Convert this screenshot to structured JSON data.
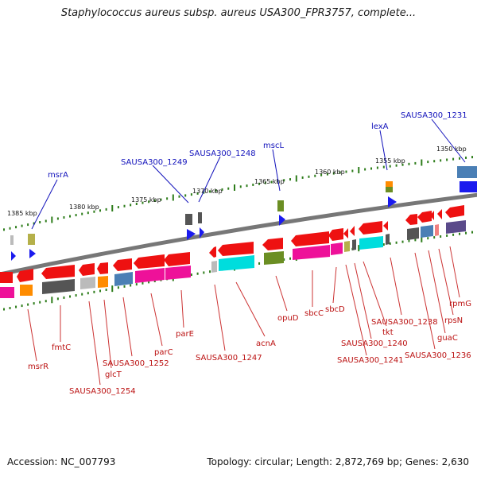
{
  "title": "Staphylococcus aureus subsp. aureus USA300_FPR3757, complete...",
  "footer": {
    "accession": "Accession: NC_007793",
    "summary": "Topology: circular; Length: 2,872,769 bp; Genes: 2,630"
  },
  "colors": {
    "backbone": "#777777",
    "tick": "#2e7d1b",
    "label_top": "#1111bb",
    "label_bottom": "#bb1111",
    "leader_top": "#1111bb",
    "leader_bottom": "#cc3333",
    "cog_red": "#ee1111",
    "cog_blue_arrow": "#1a1aee",
    "cog_dark_gray": "#555555",
    "cog_light_gray": "#bbbbbb",
    "cog_orange": "#ff8c00",
    "cog_steel_blue": "#4a7fb5",
    "cog_magenta": "#ee1199",
    "cog_cyan": "#00dddd",
    "cog_olive": "#6b8e23",
    "cog_khaki": "#b5b04a",
    "cog_slate": "#5a4a8a"
  },
  "scale_labels": [
    "1385 kbp",
    "1380 kbp",
    "1375 kbp",
    "1370 kbp",
    "1365 kbp",
    "1360 kbp",
    "1355 kbp",
    "1350 kbp"
  ],
  "genes_top": [
    "msrA",
    "SAUSA300_1249",
    "SAUSA300_1248",
    "mscL",
    "lexA",
    "SAUSA300_1231"
  ],
  "genes_bottom": [
    "msrR",
    "fmtC",
    "SAUSA300_1254",
    "glcT",
    "SAUSA300_1252",
    "parC",
    "parE",
    "SAUSA300_1247",
    "acnA",
    "opuD",
    "sbcC",
    "sbcD",
    "SAUSA300_1241",
    "SAUSA300_1240",
    "tkt",
    "SAUSA300_1238",
    "SAUSA300_1236",
    "guaC",
    "rpsN",
    "rpmG"
  ]
}
